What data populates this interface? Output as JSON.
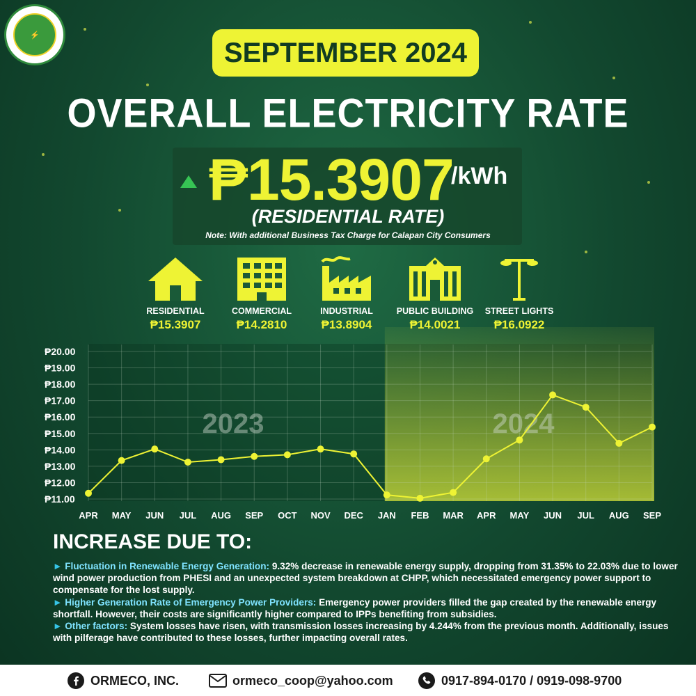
{
  "header": {
    "logo_icon": "cooperative-seal-logo",
    "month_label": "SEPTEMBER 2024",
    "title": "OVERALL ELECTRICITY RATE"
  },
  "rate": {
    "trend_icon": "up-triangle",
    "value": "₱15.3907",
    "unit": "/kWh",
    "subtitle": "(RESIDENTIAL RATE)",
    "note": "Note: With additional Business Tax Charge for Calapan City Consumers"
  },
  "categories": [
    {
      "icon": "house-icon",
      "name": "RESIDENTIAL",
      "value": "₱15.3907"
    },
    {
      "icon": "building-icon",
      "name": "COMMERCIAL",
      "value": "₱14.2810"
    },
    {
      "icon": "factory-icon",
      "name": "INDUSTRIAL",
      "value": "₱13.8904"
    },
    {
      "icon": "public-building-icon",
      "name": "PUBLIC BUILDING",
      "value": "₱14.0021"
    },
    {
      "icon": "street-light-icon",
      "name": "STREET LIGHTS",
      "value": "₱16.0922"
    }
  ],
  "chart_data": {
    "type": "line",
    "title": "",
    "xlabel": "",
    "ylabel": "",
    "ylim": [
      11,
      20
    ],
    "y_ticks": [
      "₱20.00",
      "₱19.00",
      "₱18.00",
      "₱17.00",
      "₱16.00",
      "₱15.00",
      "₱14.00",
      "₱13.00",
      "₱12.00",
      "₱11.00"
    ],
    "categories": [
      "APR",
      "MAY",
      "JUN",
      "JUL",
      "AUG",
      "SEP",
      "OCT",
      "NOV",
      "DEC",
      "JAN",
      "FEB",
      "MAR",
      "APR",
      "MAY",
      "JUN",
      "JUL",
      "AUG",
      "SEP"
    ],
    "series": [
      {
        "values": [
          11.35,
          13.35,
          14.05,
          13.25,
          13.4,
          13.6,
          13.7,
          14.05,
          13.75,
          11.25,
          11.05,
          11.4,
          13.45,
          14.6,
          17.35,
          16.6,
          14.4,
          15.39
        ]
      }
    ],
    "period_labels": [
      "2023",
      "2024"
    ],
    "highlight_start_index": 9,
    "grid": true,
    "colors": {
      "line": "#eef334",
      "highlight": "#d8e63a",
      "last_tick": "#eef334"
    }
  },
  "reasons": {
    "title": "INCREASE DUE TO:",
    "items": [
      {
        "label": "Fluctuation in Renewable Energy Generation:",
        "text": " 9.32% decrease in renewable energy supply, dropping from 31.35% to 22.03% due to lower wind power production from PHESI and an unexpected system breakdown at CHPP, which necessitated emergency power support to compensate for the lost supply."
      },
      {
        "label": "Higher Generation Rate of Emergency Power Providers:",
        "text": " Emergency power providers filled the gap created by the renewable energy shortfall. However, their costs are significantly higher compared to IPPs benefiting from subsidies."
      },
      {
        "label": "Other factors:",
        "text": " System losses have risen, with transmission losses increasing by 4.244% from the previous month. Additionally, issues with pilferage have contributed to these losses, further impacting overall rates."
      }
    ]
  },
  "footer": {
    "facebook": "ORMECO, INC.",
    "email": "ormeco_coop@yahoo.com",
    "phone": "0917-894-0170 / 0919-098-9700"
  },
  "colors": {
    "accent_yellow": "#eef334",
    "background_green": "#12482f",
    "up_green": "#36c454",
    "highlight_blue": "#7fe3ff"
  }
}
